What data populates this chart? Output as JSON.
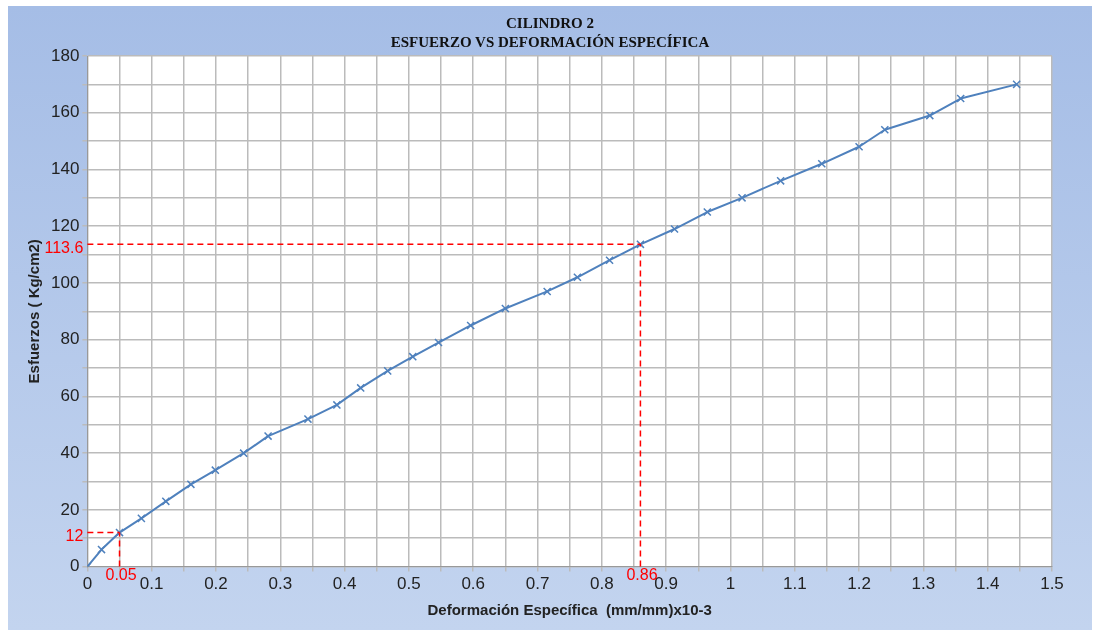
{
  "chart_data": {
    "type": "line",
    "title": "CILINDRO 2",
    "subtitle": "ESFUERZO VS DEFORMACIÓN ESPECÍFICA",
    "xlabel": "Deformación Específica  (mm/mm)x10-3",
    "ylabel": "Esfuerzos ( Kg/cm2)",
    "series": [
      {
        "color": "#4f81bd",
        "x": [
          0,
          0.022,
          0.05,
          0.084,
          0.122,
          0.161,
          0.199,
          0.243,
          0.281,
          0.343,
          0.388,
          0.425,
          0.467,
          0.506,
          0.546,
          0.596,
          0.65,
          0.715,
          0.762,
          0.812,
          0.86,
          0.913,
          0.964,
          1.018,
          1.078,
          1.142,
          1.2,
          1.24,
          1.31,
          1.358,
          1.445
        ],
        "values": [
          0,
          6,
          12,
          17,
          23,
          29,
          34,
          40,
          46,
          52,
          57,
          63,
          69,
          74,
          79,
          85,
          91,
          97,
          102,
          108,
          113.6,
          119,
          125,
          130,
          136,
          142,
          148,
          154,
          159,
          165,
          170
        ]
      }
    ],
    "xlim": [
      0,
      1.5
    ],
    "ylim": [
      0,
      180
    ],
    "xticks": [
      0,
      {
        "value": 0.05,
        "label": null
      },
      0.1,
      {
        "value": 0.15,
        "label": null
      },
      0.2,
      {
        "value": 0.25,
        "label": null
      },
      0.3,
      {
        "value": 0.35,
        "label": null
      },
      0.4,
      {
        "value": 0.45,
        "label": null
      },
      0.5,
      {
        "value": 0.55,
        "label": null
      },
      0.6,
      {
        "value": 0.65,
        "label": null
      },
      0.7,
      {
        "value": 0.75,
        "label": null
      },
      0.8,
      {
        "value": 0.85,
        "label": null
      },
      0.9,
      {
        "value": 0.95,
        "label": null
      },
      1,
      {
        "value": 1.05,
        "label": null
      },
      1.1,
      {
        "value": 1.15,
        "label": null
      },
      1.2,
      {
        "value": 1.25,
        "label": null
      },
      1.3,
      {
        "value": 1.35,
        "label": null
      },
      1.4,
      {
        "value": 1.45,
        "label": null
      },
      1.5
    ],
    "yticks": [
      0,
      {
        "value": 10,
        "label": null
      },
      20,
      {
        "value": 30,
        "label": null
      },
      40,
      {
        "value": 50,
        "label": null
      },
      60,
      {
        "value": 70,
        "label": null
      },
      80,
      {
        "value": 90,
        "label": null
      },
      100,
      {
        "value": 110,
        "label": null
      },
      120,
      {
        "value": 130,
        "label": null
      },
      140,
      {
        "value": 150,
        "label": null
      },
      160,
      {
        "value": 170,
        "label": null
      },
      180
    ],
    "ref_lines": [
      {
        "axis": "x",
        "value": 0.05,
        "label": "0.05",
        "color": "#ff0000",
        "line_style": "dashed"
      },
      {
        "axis": "y",
        "value": 12,
        "label": "12",
        "color": "#ff0000",
        "line_style": "dashed"
      },
      {
        "axis": "x",
        "value": 0.86,
        "label": "0.86",
        "color": "#ff0000",
        "line_style": "dashed"
      },
      {
        "axis": "y",
        "value": 113.6,
        "label": "113.6",
        "color": "#ff0000",
        "line_style": "dashed"
      }
    ],
    "grid": true,
    "legend": false,
    "marker": "cross",
    "line_style": "solid"
  }
}
